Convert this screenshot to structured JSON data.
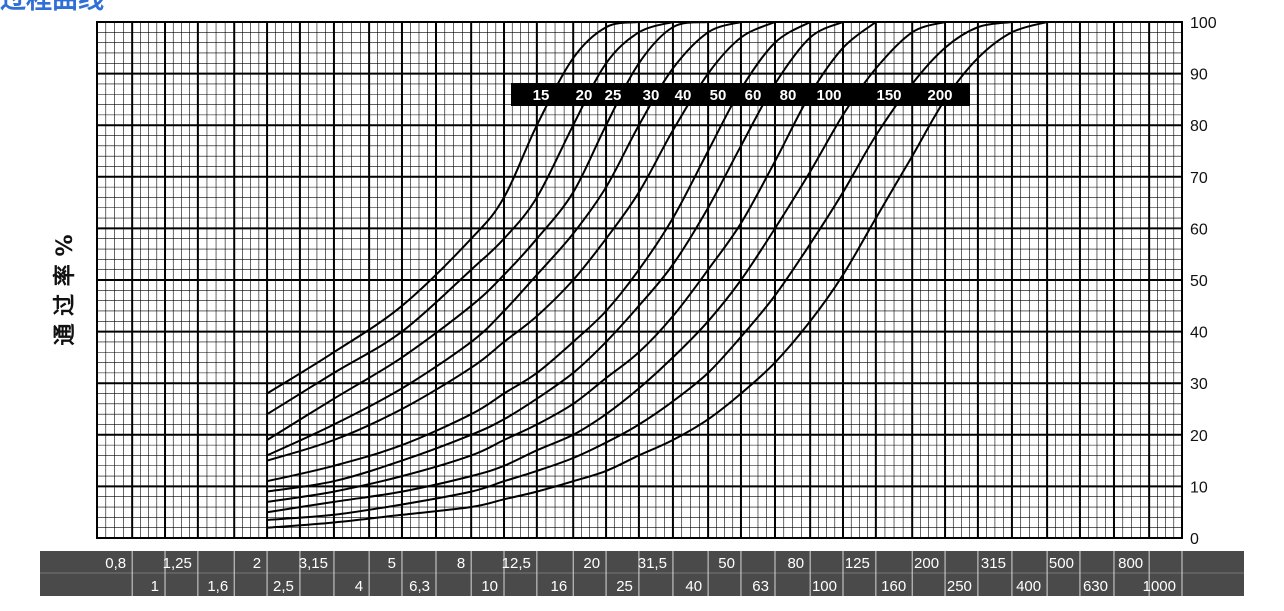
{
  "header": {
    "title_fragment": "过程曲线"
  },
  "chart_data": {
    "type": "line",
    "title": "",
    "xlabel": "",
    "ylabel": "通 过 率 %",
    "xscale": "log",
    "xlim": [
      0.63,
      1000
    ],
    "ylim": [
      0,
      100
    ],
    "grid": true,
    "yticks": [
      "0",
      "10",
      "20",
      "30",
      "40",
      "50",
      "60",
      "70",
      "80",
      "90",
      "100"
    ],
    "xticks_top": [
      "0,8",
      "1,25",
      "2",
      "3,15",
      "5",
      "8",
      "12,5",
      "20",
      "31,5",
      "50",
      "80",
      "125",
      "200",
      "315",
      "500",
      "800"
    ],
    "xticks_bottom": [
      "1",
      "1,6",
      "2,5",
      "4",
      "6,3",
      "10",
      "16",
      "25",
      "40",
      "63",
      "100",
      "160",
      "250",
      "400",
      "630",
      "1000"
    ],
    "legend_labels": [
      "15",
      "20",
      "25",
      "30",
      "40",
      "50",
      "60",
      "80",
      "100",
      "150",
      "200"
    ],
    "series": [
      {
        "values": [
          [
            2,
            28
          ],
          [
            3.15,
            36
          ],
          [
            5,
            45
          ],
          [
            8,
            58
          ],
          [
            10,
            66
          ],
          [
            12.5,
            80
          ],
          [
            16,
            93
          ],
          [
            20,
            99
          ],
          [
            25,
            100
          ]
        ]
      },
      {
        "values": [
          [
            2,
            24
          ],
          [
            3.15,
            32
          ],
          [
            5,
            40
          ],
          [
            8,
            52
          ],
          [
            10,
            58
          ],
          [
            12.5,
            66
          ],
          [
            16,
            80
          ],
          [
            20,
            92
          ],
          [
            25,
            98
          ],
          [
            31.5,
            100
          ]
        ]
      },
      {
        "values": [
          [
            2,
            19
          ],
          [
            3.15,
            27
          ],
          [
            5,
            35
          ],
          [
            8,
            45
          ],
          [
            10,
            51
          ],
          [
            12.5,
            58
          ],
          [
            16,
            67
          ],
          [
            20,
            80
          ],
          [
            25,
            92
          ],
          [
            31.5,
            99
          ],
          [
            40,
            100
          ]
        ]
      },
      {
        "values": [
          [
            2,
            16
          ],
          [
            3.15,
            22
          ],
          [
            5,
            29
          ],
          [
            8,
            38
          ],
          [
            10,
            44
          ],
          [
            12.5,
            51
          ],
          [
            16,
            59
          ],
          [
            20,
            68
          ],
          [
            25,
            80
          ],
          [
            31.5,
            91
          ],
          [
            40,
            98
          ],
          [
            50,
            100
          ]
        ]
      },
      {
        "values": [
          [
            2,
            15
          ],
          [
            3.15,
            19
          ],
          [
            5,
            25
          ],
          [
            8,
            33
          ],
          [
            10,
            38
          ],
          [
            12.5,
            43
          ],
          [
            16,
            50
          ],
          [
            20,
            58
          ],
          [
            25,
            67
          ],
          [
            31.5,
            79
          ],
          [
            40,
            90
          ],
          [
            50,
            97
          ],
          [
            63,
            100
          ]
        ]
      },
      {
        "values": [
          [
            2,
            11
          ],
          [
            3.15,
            14
          ],
          [
            5,
            18
          ],
          [
            8,
            24
          ],
          [
            10,
            28
          ],
          [
            12.5,
            32
          ],
          [
            16,
            38
          ],
          [
            20,
            44
          ],
          [
            25,
            52
          ],
          [
            31.5,
            62
          ],
          [
            40,
            75
          ],
          [
            50,
            87
          ],
          [
            63,
            96
          ],
          [
            80,
            100
          ]
        ]
      },
      {
        "values": [
          [
            2,
            9
          ],
          [
            3.15,
            11
          ],
          [
            5,
            15
          ],
          [
            8,
            20
          ],
          [
            10,
            23
          ],
          [
            12.5,
            27
          ],
          [
            16,
            32
          ],
          [
            20,
            38
          ],
          [
            25,
            45
          ],
          [
            31.5,
            53
          ],
          [
            40,
            64
          ],
          [
            50,
            76
          ],
          [
            63,
            88
          ],
          [
            80,
            97
          ],
          [
            100,
            100
          ]
        ]
      },
      {
        "values": [
          [
            2,
            7
          ],
          [
            3.15,
            9
          ],
          [
            5,
            12
          ],
          [
            8,
            16
          ],
          [
            10,
            19
          ],
          [
            12.5,
            22
          ],
          [
            16,
            26
          ],
          [
            20,
            31
          ],
          [
            25,
            36
          ],
          [
            31.5,
            43
          ],
          [
            40,
            52
          ],
          [
            50,
            61
          ],
          [
            63,
            73
          ],
          [
            80,
            86
          ],
          [
            100,
            95
          ],
          [
            125,
            100
          ]
        ]
      },
      {
        "values": [
          [
            2,
            5
          ],
          [
            3.15,
            7
          ],
          [
            5,
            9
          ],
          [
            8,
            12
          ],
          [
            10,
            14
          ],
          [
            12.5,
            17
          ],
          [
            16,
            20
          ],
          [
            20,
            24
          ],
          [
            25,
            29
          ],
          [
            31.5,
            35
          ],
          [
            40,
            42
          ],
          [
            50,
            50
          ],
          [
            63,
            60
          ],
          [
            80,
            71
          ],
          [
            100,
            82
          ],
          [
            125,
            91
          ],
          [
            160,
            98
          ],
          [
            200,
            100
          ]
        ]
      },
      {
        "values": [
          [
            2,
            3.5
          ],
          [
            3.15,
            4.5
          ],
          [
            5,
            6.5
          ],
          [
            8,
            9
          ],
          [
            10,
            11
          ],
          [
            12.5,
            13
          ],
          [
            16,
            15.5
          ],
          [
            20,
            18.5
          ],
          [
            25,
            22
          ],
          [
            31.5,
            26.5
          ],
          [
            40,
            32
          ],
          [
            50,
            39
          ],
          [
            63,
            47
          ],
          [
            80,
            57
          ],
          [
            100,
            67
          ],
          [
            125,
            78
          ],
          [
            160,
            88
          ],
          [
            200,
            95
          ],
          [
            250,
            99
          ],
          [
            315,
            100
          ]
        ]
      },
      {
        "values": [
          [
            2,
            2
          ],
          [
            3.15,
            3
          ],
          [
            5,
            4.5
          ],
          [
            8,
            6
          ],
          [
            10,
            7.5
          ],
          [
            12.5,
            9
          ],
          [
            16,
            11
          ],
          [
            20,
            13
          ],
          [
            25,
            16
          ],
          [
            31.5,
            19
          ],
          [
            40,
            23
          ],
          [
            50,
            28
          ],
          [
            63,
            34
          ],
          [
            80,
            42
          ],
          [
            100,
            51
          ],
          [
            125,
            62
          ],
          [
            160,
            74
          ],
          [
            200,
            85
          ],
          [
            250,
            93
          ],
          [
            315,
            98
          ],
          [
            400,
            100
          ]
        ]
      }
    ]
  }
}
